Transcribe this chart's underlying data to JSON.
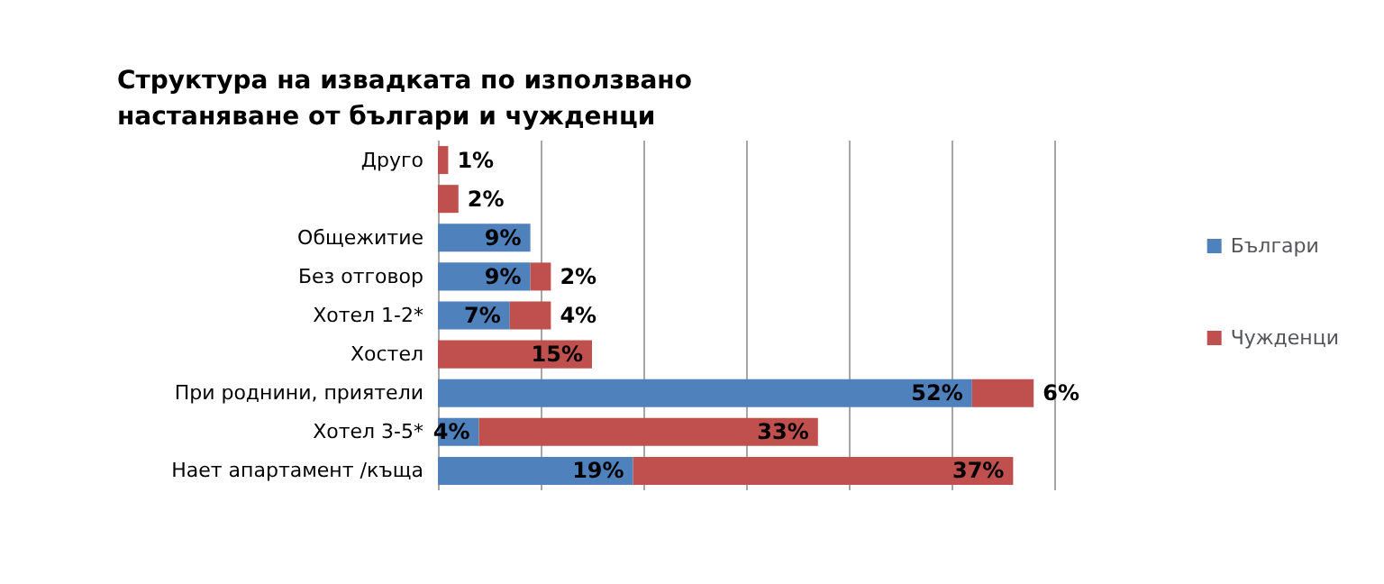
{
  "chart_data": {
    "type": "bar",
    "orientation": "horizontal",
    "stacked": true,
    "title": "Структура на извадката по използвано настаняване от българи и чужденци",
    "categories": [
      "Друго",
      null,
      "Общежитие",
      "Без отговор",
      "Хотел 1-2*",
      "Хостел",
      "При роднини, приятели",
      "Хотел 3-5*",
      "Нает апартамент /къща"
    ],
    "series": [
      {
        "name": "Българи",
        "color": "#4f81bd",
        "values": [
          null,
          null,
          9,
          9,
          7,
          null,
          52,
          4,
          19
        ],
        "value_labels": [
          null,
          null,
          "9%",
          "9%",
          "7%",
          null,
          "52%",
          "4%",
          "19%"
        ]
      },
      {
        "name": "Чужденци",
        "color": "#c0504d",
        "values": [
          1,
          2,
          null,
          2,
          4,
          15,
          6,
          33,
          37
        ],
        "value_labels": [
          "1%",
          "2%",
          null,
          "2%",
          "4%",
          "15%",
          "6%",
          "33%",
          "37%"
        ]
      }
    ],
    "xlim": [
      0,
      60
    ],
    "xticks": [
      {
        "value": 0,
        "label": null
      },
      {
        "value": 10,
        "label": null
      },
      {
        "value": 20,
        "label": null
      },
      {
        "value": 30,
        "label": null
      },
      {
        "value": 40,
        "label": null
      },
      {
        "value": 50,
        "label": null
      },
      {
        "value": 60,
        "label": null
      }
    ],
    "tick_labels": "y",
    "grid": "x",
    "legend": "right"
  }
}
